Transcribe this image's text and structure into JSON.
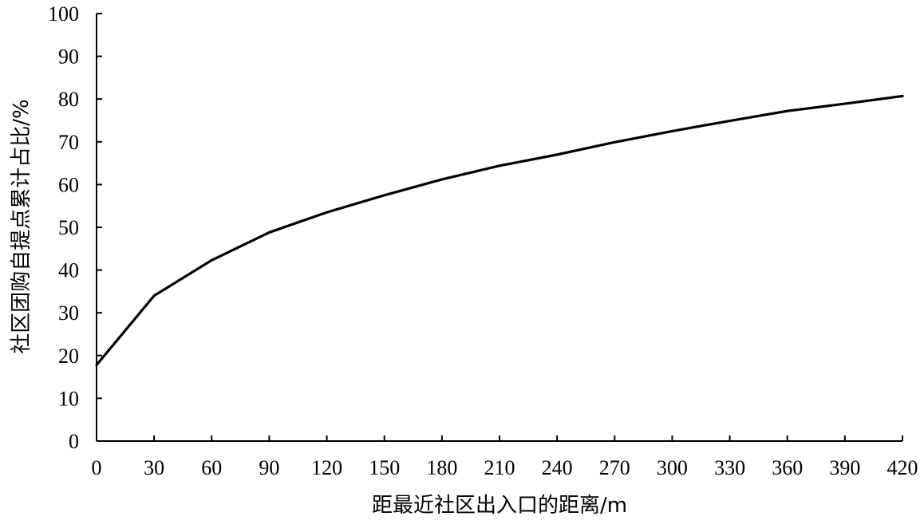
{
  "chart_data": {
    "type": "line",
    "title": "",
    "xlabel": "距最近社区出入口的距离/m",
    "ylabel": "社区团购自提点累计占比/%",
    "xlim": [
      0,
      420
    ],
    "ylim": [
      0,
      100
    ],
    "x_ticks": [
      "0",
      "30",
      "60",
      "90",
      "120",
      "150",
      "180",
      "210",
      "240",
      "270",
      "300",
      "330",
      "360",
      "390",
      "420"
    ],
    "y_ticks": [
      "0",
      "10",
      "20",
      "30",
      "40",
      "50",
      "60",
      "70",
      "80",
      "90",
      "100"
    ],
    "grid": false,
    "legend": false,
    "series": [
      {
        "x": [
          0,
          30,
          60,
          90,
          120,
          150,
          180,
          210,
          240,
          270,
          300,
          330,
          360,
          390,
          420
        ],
        "y": [
          17.8,
          34.0,
          42.3,
          48.8,
          53.5,
          57.5,
          61.2,
          64.4,
          67.0,
          69.9,
          72.5,
          74.9,
          77.2,
          78.9,
          80.7
        ],
        "color": "#000000"
      }
    ]
  }
}
